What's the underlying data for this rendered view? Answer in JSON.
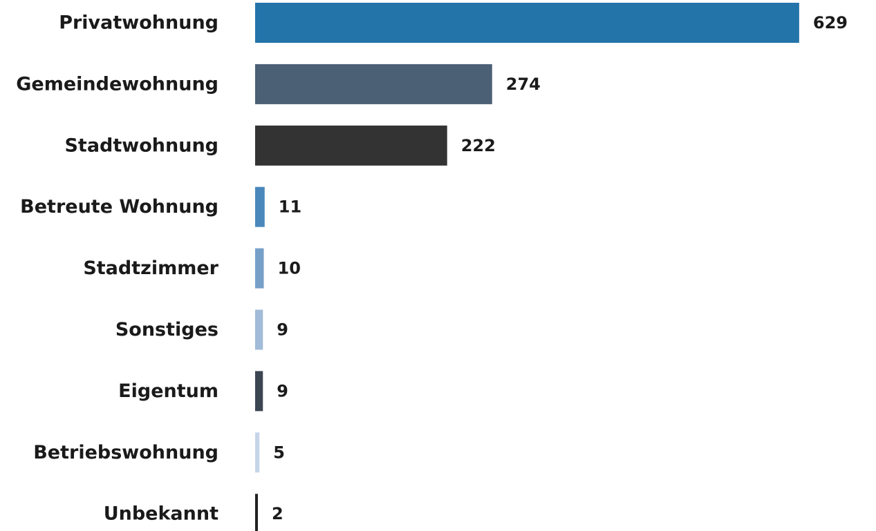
{
  "chart_data": {
    "type": "bar",
    "orientation": "horizontal",
    "categories": [
      "Privatwohnung",
      "Gemeindewohnung",
      "Stadtwohnung",
      "Betreute Wohnung",
      "Stadtzimmer",
      "Sonstiges",
      "Eigentum",
      "Betriebswohnung",
      "Unbekannt"
    ],
    "values": [
      629,
      274,
      222,
      11,
      10,
      9,
      9,
      5,
      2
    ],
    "value_labels": [
      "629",
      "274",
      "222",
      "11",
      "10",
      "9",
      "9",
      "5",
      "2"
    ],
    "colors": [
      "#2374a9",
      "#4b5f75",
      "#333333",
      "#4a88bb",
      "#76a0c8",
      "#a1bbd8",
      "#3c4552",
      "#c5d5e8",
      "#222222"
    ],
    "title": "",
    "xlabel": "",
    "ylabel": "",
    "grid": false,
    "legend": "none"
  }
}
